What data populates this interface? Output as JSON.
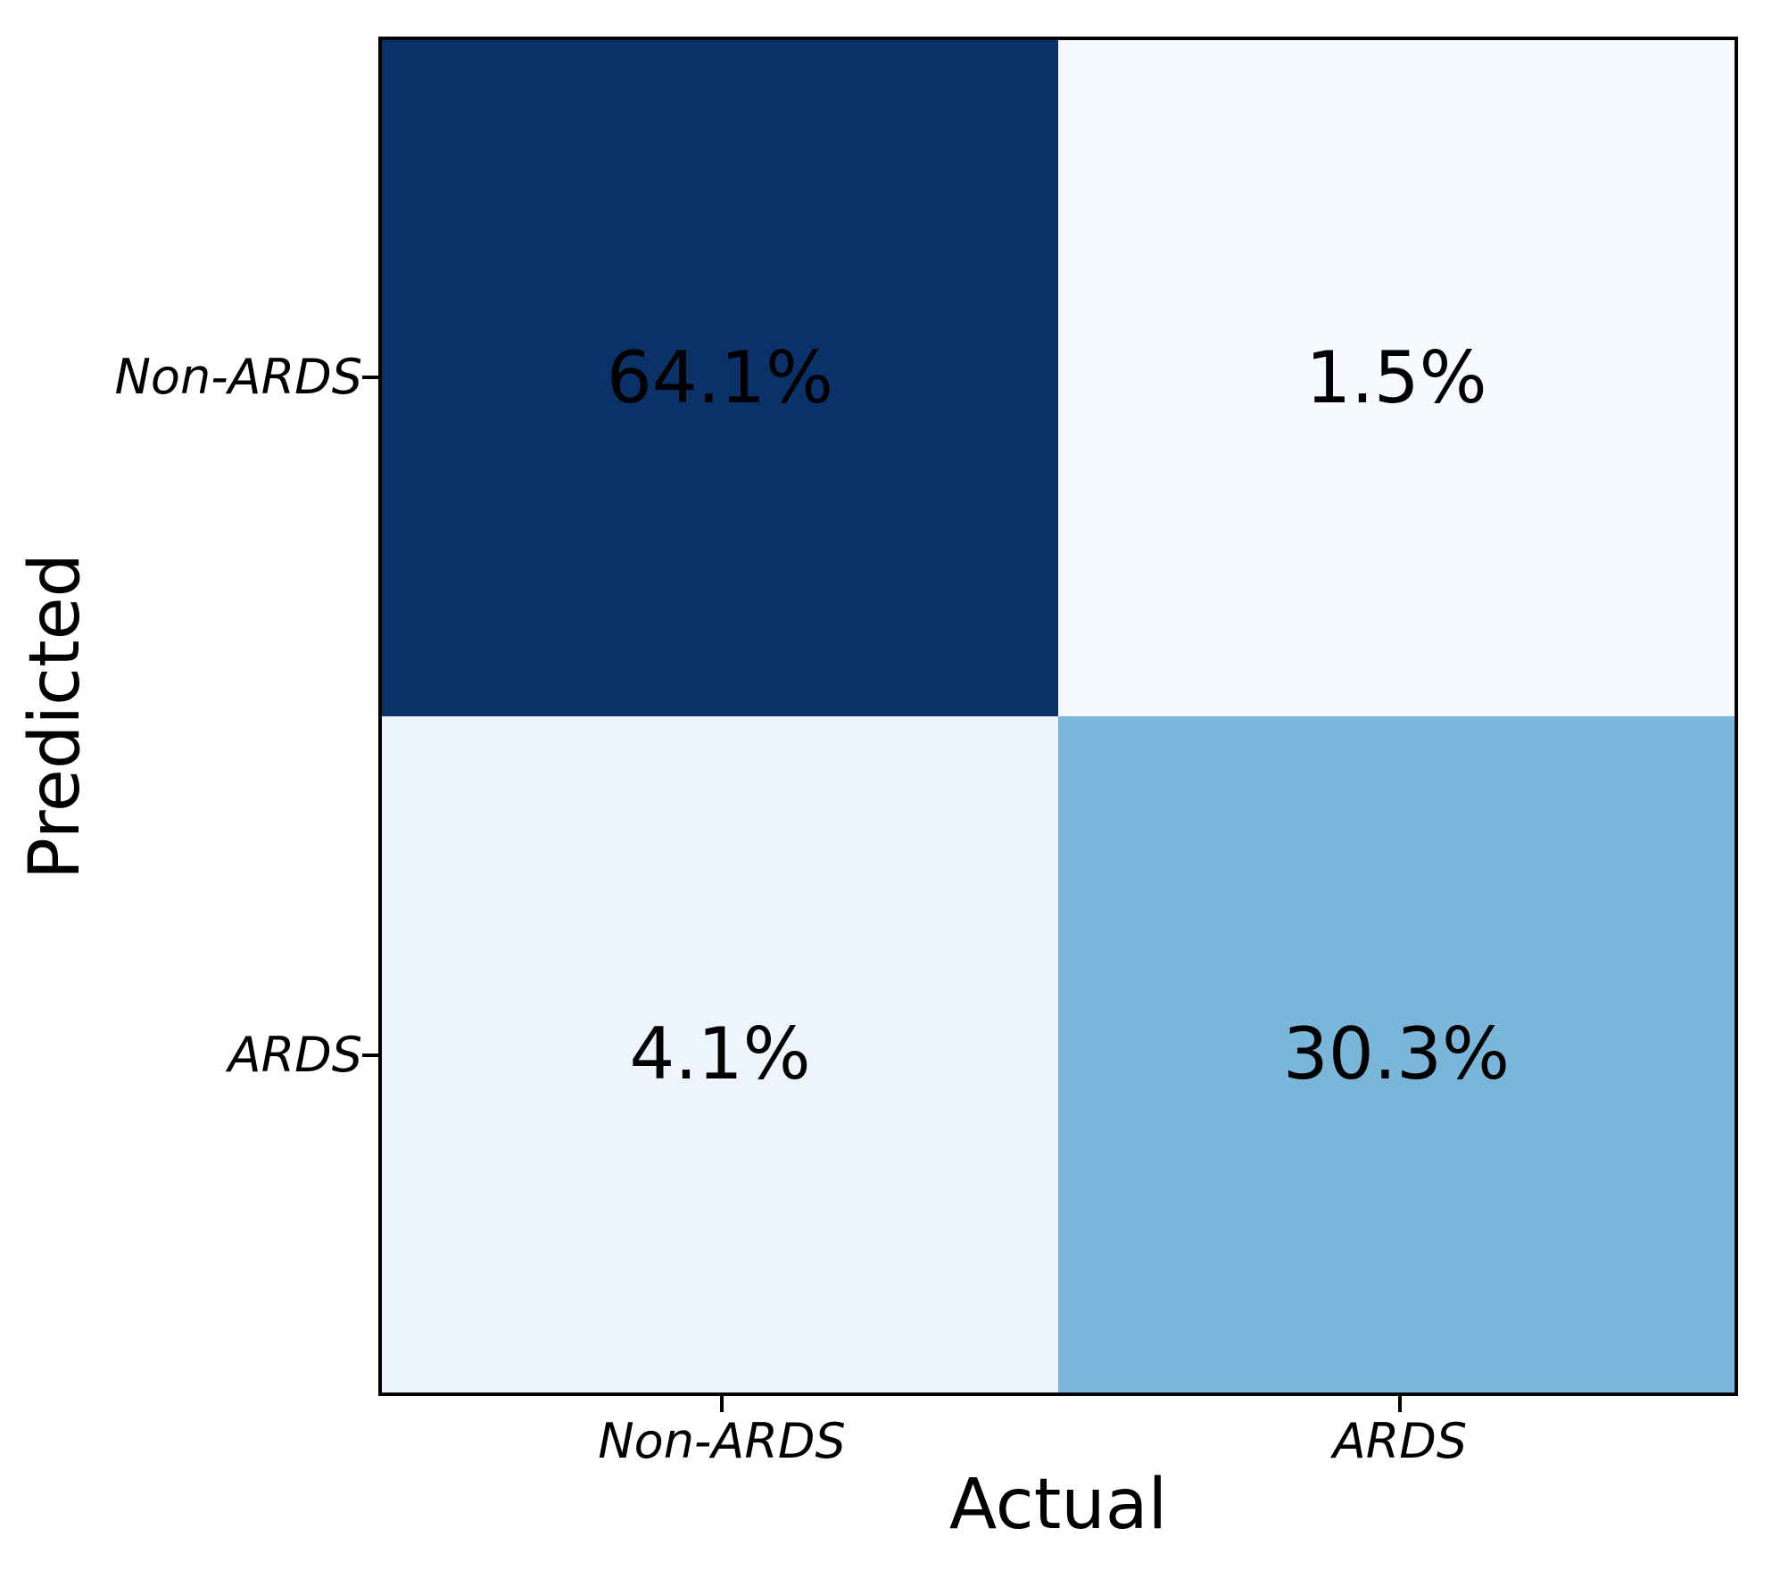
{
  "chart_data": {
    "type": "heatmap",
    "subtype": "confusion-matrix",
    "title": "",
    "xlabel": "Actual",
    "ylabel": "Predicted",
    "x_categories": [
      "Non-ARDS",
      "ARDS"
    ],
    "y_categories": [
      "Non-ARDS",
      "ARDS"
    ],
    "values": [
      [
        64.1,
        1.5
      ],
      [
        4.1,
        30.3
      ]
    ],
    "cell_labels": [
      [
        "64.1%",
        "1.5%"
      ],
      [
        "4.1%",
        "30.3%"
      ]
    ],
    "cell_colors": [
      [
        "#0a3168",
        "#f6f9fe"
      ],
      [
        "#eef4fb",
        "#7ab6da"
      ]
    ],
    "value_unit": "%",
    "colormap": "Blues",
    "grid": false,
    "legend": "none",
    "text_color": "#000000",
    "frame_color": "#000000",
    "background_color": "#ffffff"
  }
}
